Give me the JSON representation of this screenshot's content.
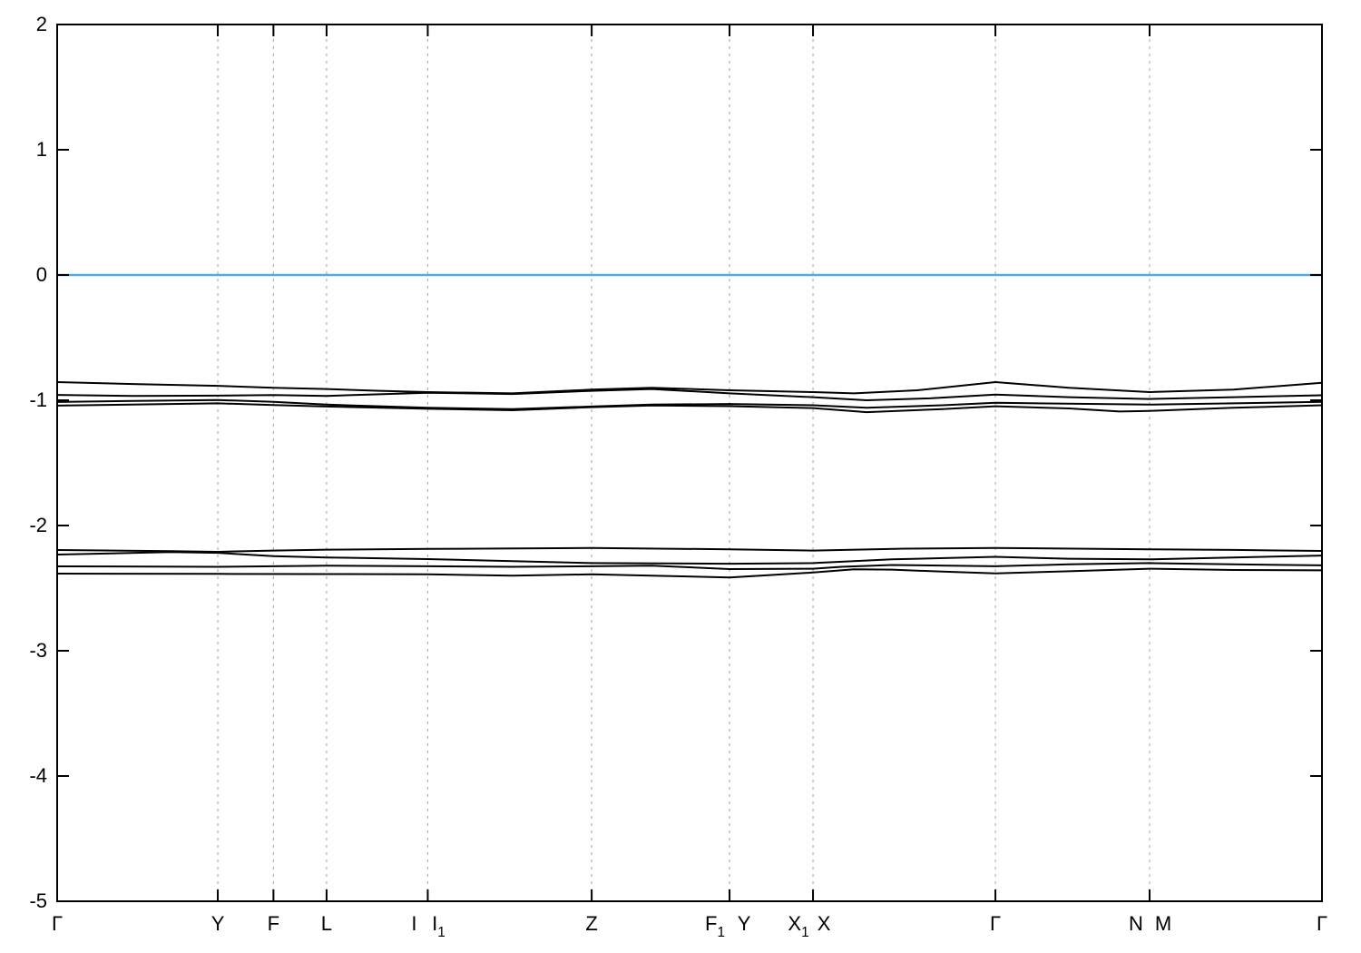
{
  "figure": {
    "title": "",
    "description": "Electronic band structure along high-symmetry k-path with Fermi level at 0"
  },
  "chart_data": {
    "type": "line",
    "title": "",
    "xlabel": "",
    "ylabel": "",
    "ylim": [
      -5,
      2
    ],
    "xlim": [
      0,
      1
    ],
    "grid": "vertical-dashed",
    "legend": "none",
    "y_ticks": [
      "2",
      "1",
      "0",
      "-1",
      "-2",
      "-3",
      "-4",
      "-5"
    ],
    "y_tick_values": [
      2,
      1,
      0,
      -1,
      -2,
      -3,
      -4,
      -5
    ],
    "k_ticks": [
      {
        "k": 0.0
      },
      {
        "k": 0.127
      },
      {
        "k": 0.171
      },
      {
        "k": 0.213
      },
      {
        "k": 0.293
      },
      {
        "k": 0.4226
      },
      {
        "k": 0.5316
      },
      {
        "k": 0.5976
      },
      {
        "k": 0.7418
      },
      {
        "k": 0.8637
      },
      {
        "k": 1.0
      }
    ],
    "k_labels": [
      {
        "base": "Γ",
        "sub": "",
        "k": 0.0,
        "dx": 0
      },
      {
        "base": "Y",
        "sub": "",
        "k": 0.127,
        "dx": 0
      },
      {
        "base": "F",
        "sub": "",
        "k": 0.171,
        "dx": 0
      },
      {
        "base": "L",
        "sub": "",
        "k": 0.213,
        "dx": 0
      },
      {
        "base": "I",
        "sub": "",
        "k": 0.293,
        "dx": -15
      },
      {
        "base": "I",
        "sub": "1",
        "k": 0.293,
        "dx": 12
      },
      {
        "base": "Z",
        "sub": "",
        "k": 0.4226,
        "dx": 0
      },
      {
        "base": "F",
        "sub": "1",
        "k": 0.5316,
        "dx": -16
      },
      {
        "base": "Y",
        "sub": "",
        "k": 0.5316,
        "dx": 16
      },
      {
        "base": "X",
        "sub": "1",
        "k": 0.5976,
        "dx": -16
      },
      {
        "base": "X",
        "sub": "",
        "k": 0.5976,
        "dx": 12
      },
      {
        "base": "Γ",
        "sub": "",
        "k": 0.7418,
        "dx": 0
      },
      {
        "base": "N",
        "sub": "",
        "k": 0.8637,
        "dx": -15
      },
      {
        "base": "M",
        "sub": "",
        "k": 0.8637,
        "dx": 15
      },
      {
        "base": "Γ",
        "sub": "",
        "k": 1.0,
        "dx": 0
      }
    ],
    "fermi_level": 0,
    "colors": {
      "band": "#000000",
      "fermi": "#55aadd",
      "grid": "#b0b0b0",
      "axis": "#000000",
      "background": "#ffffff"
    },
    "series": [
      {
        "name": "band-1",
        "points": [
          [
            0,
            -0.855
          ],
          [
            0.06,
            -0.87
          ],
          [
            0.127,
            -0.885
          ],
          [
            0.171,
            -0.9
          ],
          [
            0.213,
            -0.91
          ],
          [
            0.255,
            -0.925
          ],
          [
            0.293,
            -0.935
          ],
          [
            0.36,
            -0.945
          ],
          [
            0.4226,
            -0.915
          ],
          [
            0.47,
            -0.9
          ],
          [
            0.5316,
            -0.92
          ],
          [
            0.5976,
            -0.935
          ],
          [
            0.63,
            -0.945
          ],
          [
            0.68,
            -0.92
          ],
          [
            0.7418,
            -0.855
          ],
          [
            0.8,
            -0.9
          ],
          [
            0.8637,
            -0.935
          ],
          [
            0.93,
            -0.915
          ],
          [
            1.0,
            -0.86
          ]
        ]
      },
      {
        "name": "band-2",
        "points": [
          [
            0,
            -0.957
          ],
          [
            0.06,
            -0.965
          ],
          [
            0.127,
            -0.963
          ],
          [
            0.171,
            -0.958
          ],
          [
            0.213,
            -0.965
          ],
          [
            0.255,
            -0.952
          ],
          [
            0.293,
            -0.94
          ],
          [
            0.36,
            -0.95
          ],
          [
            0.4226,
            -0.925
          ],
          [
            0.47,
            -0.91
          ],
          [
            0.5316,
            -0.945
          ],
          [
            0.5976,
            -0.975
          ],
          [
            0.64,
            -1.0
          ],
          [
            0.69,
            -0.985
          ],
          [
            0.7418,
            -0.955
          ],
          [
            0.8,
            -0.975
          ],
          [
            0.8637,
            -0.99
          ],
          [
            0.93,
            -0.975
          ],
          [
            1.0,
            -0.96
          ]
        ]
      },
      {
        "name": "band-3",
        "points": [
          [
            0,
            -1.014
          ],
          [
            0.06,
            -1.005
          ],
          [
            0.127,
            -0.998
          ],
          [
            0.171,
            -1.012
          ],
          [
            0.213,
            -1.035
          ],
          [
            0.293,
            -1.06
          ],
          [
            0.36,
            -1.07
          ],
          [
            0.4226,
            -1.05
          ],
          [
            0.47,
            -1.035
          ],
          [
            0.5316,
            -1.03
          ],
          [
            0.5976,
            -1.04
          ],
          [
            0.64,
            -1.06
          ],
          [
            0.7,
            -1.04
          ],
          [
            0.7418,
            -1.02
          ],
          [
            0.8637,
            -1.035
          ],
          [
            0.93,
            -1.025
          ],
          [
            1.0,
            -1.012
          ]
        ]
      },
      {
        "name": "band-4",
        "points": [
          [
            0,
            -1.043
          ],
          [
            0.127,
            -1.025
          ],
          [
            0.171,
            -1.038
          ],
          [
            0.213,
            -1.05
          ],
          [
            0.293,
            -1.068
          ],
          [
            0.36,
            -1.08
          ],
          [
            0.4226,
            -1.055
          ],
          [
            0.47,
            -1.042
          ],
          [
            0.5316,
            -1.047
          ],
          [
            0.5976,
            -1.062
          ],
          [
            0.64,
            -1.095
          ],
          [
            0.7,
            -1.07
          ],
          [
            0.7418,
            -1.048
          ],
          [
            0.8,
            -1.065
          ],
          [
            0.84,
            -1.09
          ],
          [
            0.8637,
            -1.085
          ],
          [
            0.93,
            -1.06
          ],
          [
            1.0,
            -1.04
          ]
        ]
      },
      {
        "name": "band-5",
        "points": [
          [
            0,
            -2.196
          ],
          [
            0.09,
            -2.205
          ],
          [
            0.127,
            -2.21
          ],
          [
            0.171,
            -2.2
          ],
          [
            0.213,
            -2.193
          ],
          [
            0.293,
            -2.187
          ],
          [
            0.4226,
            -2.18
          ],
          [
            0.5316,
            -2.19
          ],
          [
            0.5976,
            -2.2
          ],
          [
            0.67,
            -2.185
          ],
          [
            0.7418,
            -2.18
          ],
          [
            0.8637,
            -2.19
          ],
          [
            0.93,
            -2.195
          ],
          [
            1.0,
            -2.203
          ]
        ]
      },
      {
        "name": "band-6",
        "points": [
          [
            0,
            -2.232
          ],
          [
            0.09,
            -2.212
          ],
          [
            0.127,
            -2.218
          ],
          [
            0.171,
            -2.245
          ],
          [
            0.213,
            -2.255
          ],
          [
            0.293,
            -2.268
          ],
          [
            0.36,
            -2.285
          ],
          [
            0.4226,
            -2.3
          ],
          [
            0.5316,
            -2.305
          ],
          [
            0.5976,
            -2.3
          ],
          [
            0.66,
            -2.27
          ],
          [
            0.7418,
            -2.25
          ],
          [
            0.8,
            -2.265
          ],
          [
            0.8637,
            -2.27
          ],
          [
            0.93,
            -2.255
          ],
          [
            1.0,
            -2.24
          ]
        ]
      },
      {
        "name": "band-7",
        "points": [
          [
            0,
            -2.326
          ],
          [
            0.127,
            -2.33
          ],
          [
            0.171,
            -2.325
          ],
          [
            0.213,
            -2.32
          ],
          [
            0.293,
            -2.325
          ],
          [
            0.36,
            -2.33
          ],
          [
            0.4226,
            -2.325
          ],
          [
            0.47,
            -2.32
          ],
          [
            0.5316,
            -2.348
          ],
          [
            0.5976,
            -2.345
          ],
          [
            0.62,
            -2.33
          ],
          [
            0.66,
            -2.315
          ],
          [
            0.7418,
            -2.325
          ],
          [
            0.8,
            -2.31
          ],
          [
            0.8637,
            -2.3
          ],
          [
            0.93,
            -2.31
          ],
          [
            1.0,
            -2.318
          ]
        ]
      },
      {
        "name": "band-8",
        "points": [
          [
            0,
            -2.384
          ],
          [
            0.127,
            -2.386
          ],
          [
            0.213,
            -2.388
          ],
          [
            0.293,
            -2.39
          ],
          [
            0.36,
            -2.4
          ],
          [
            0.4226,
            -2.39
          ],
          [
            0.47,
            -2.4
          ],
          [
            0.5316,
            -2.415
          ],
          [
            0.5976,
            -2.375
          ],
          [
            0.63,
            -2.35
          ],
          [
            0.66,
            -2.352
          ],
          [
            0.7,
            -2.368
          ],
          [
            0.7418,
            -2.382
          ],
          [
            0.8,
            -2.365
          ],
          [
            0.8637,
            -2.345
          ],
          [
            0.93,
            -2.355
          ],
          [
            1.0,
            -2.358
          ]
        ]
      }
    ]
  }
}
